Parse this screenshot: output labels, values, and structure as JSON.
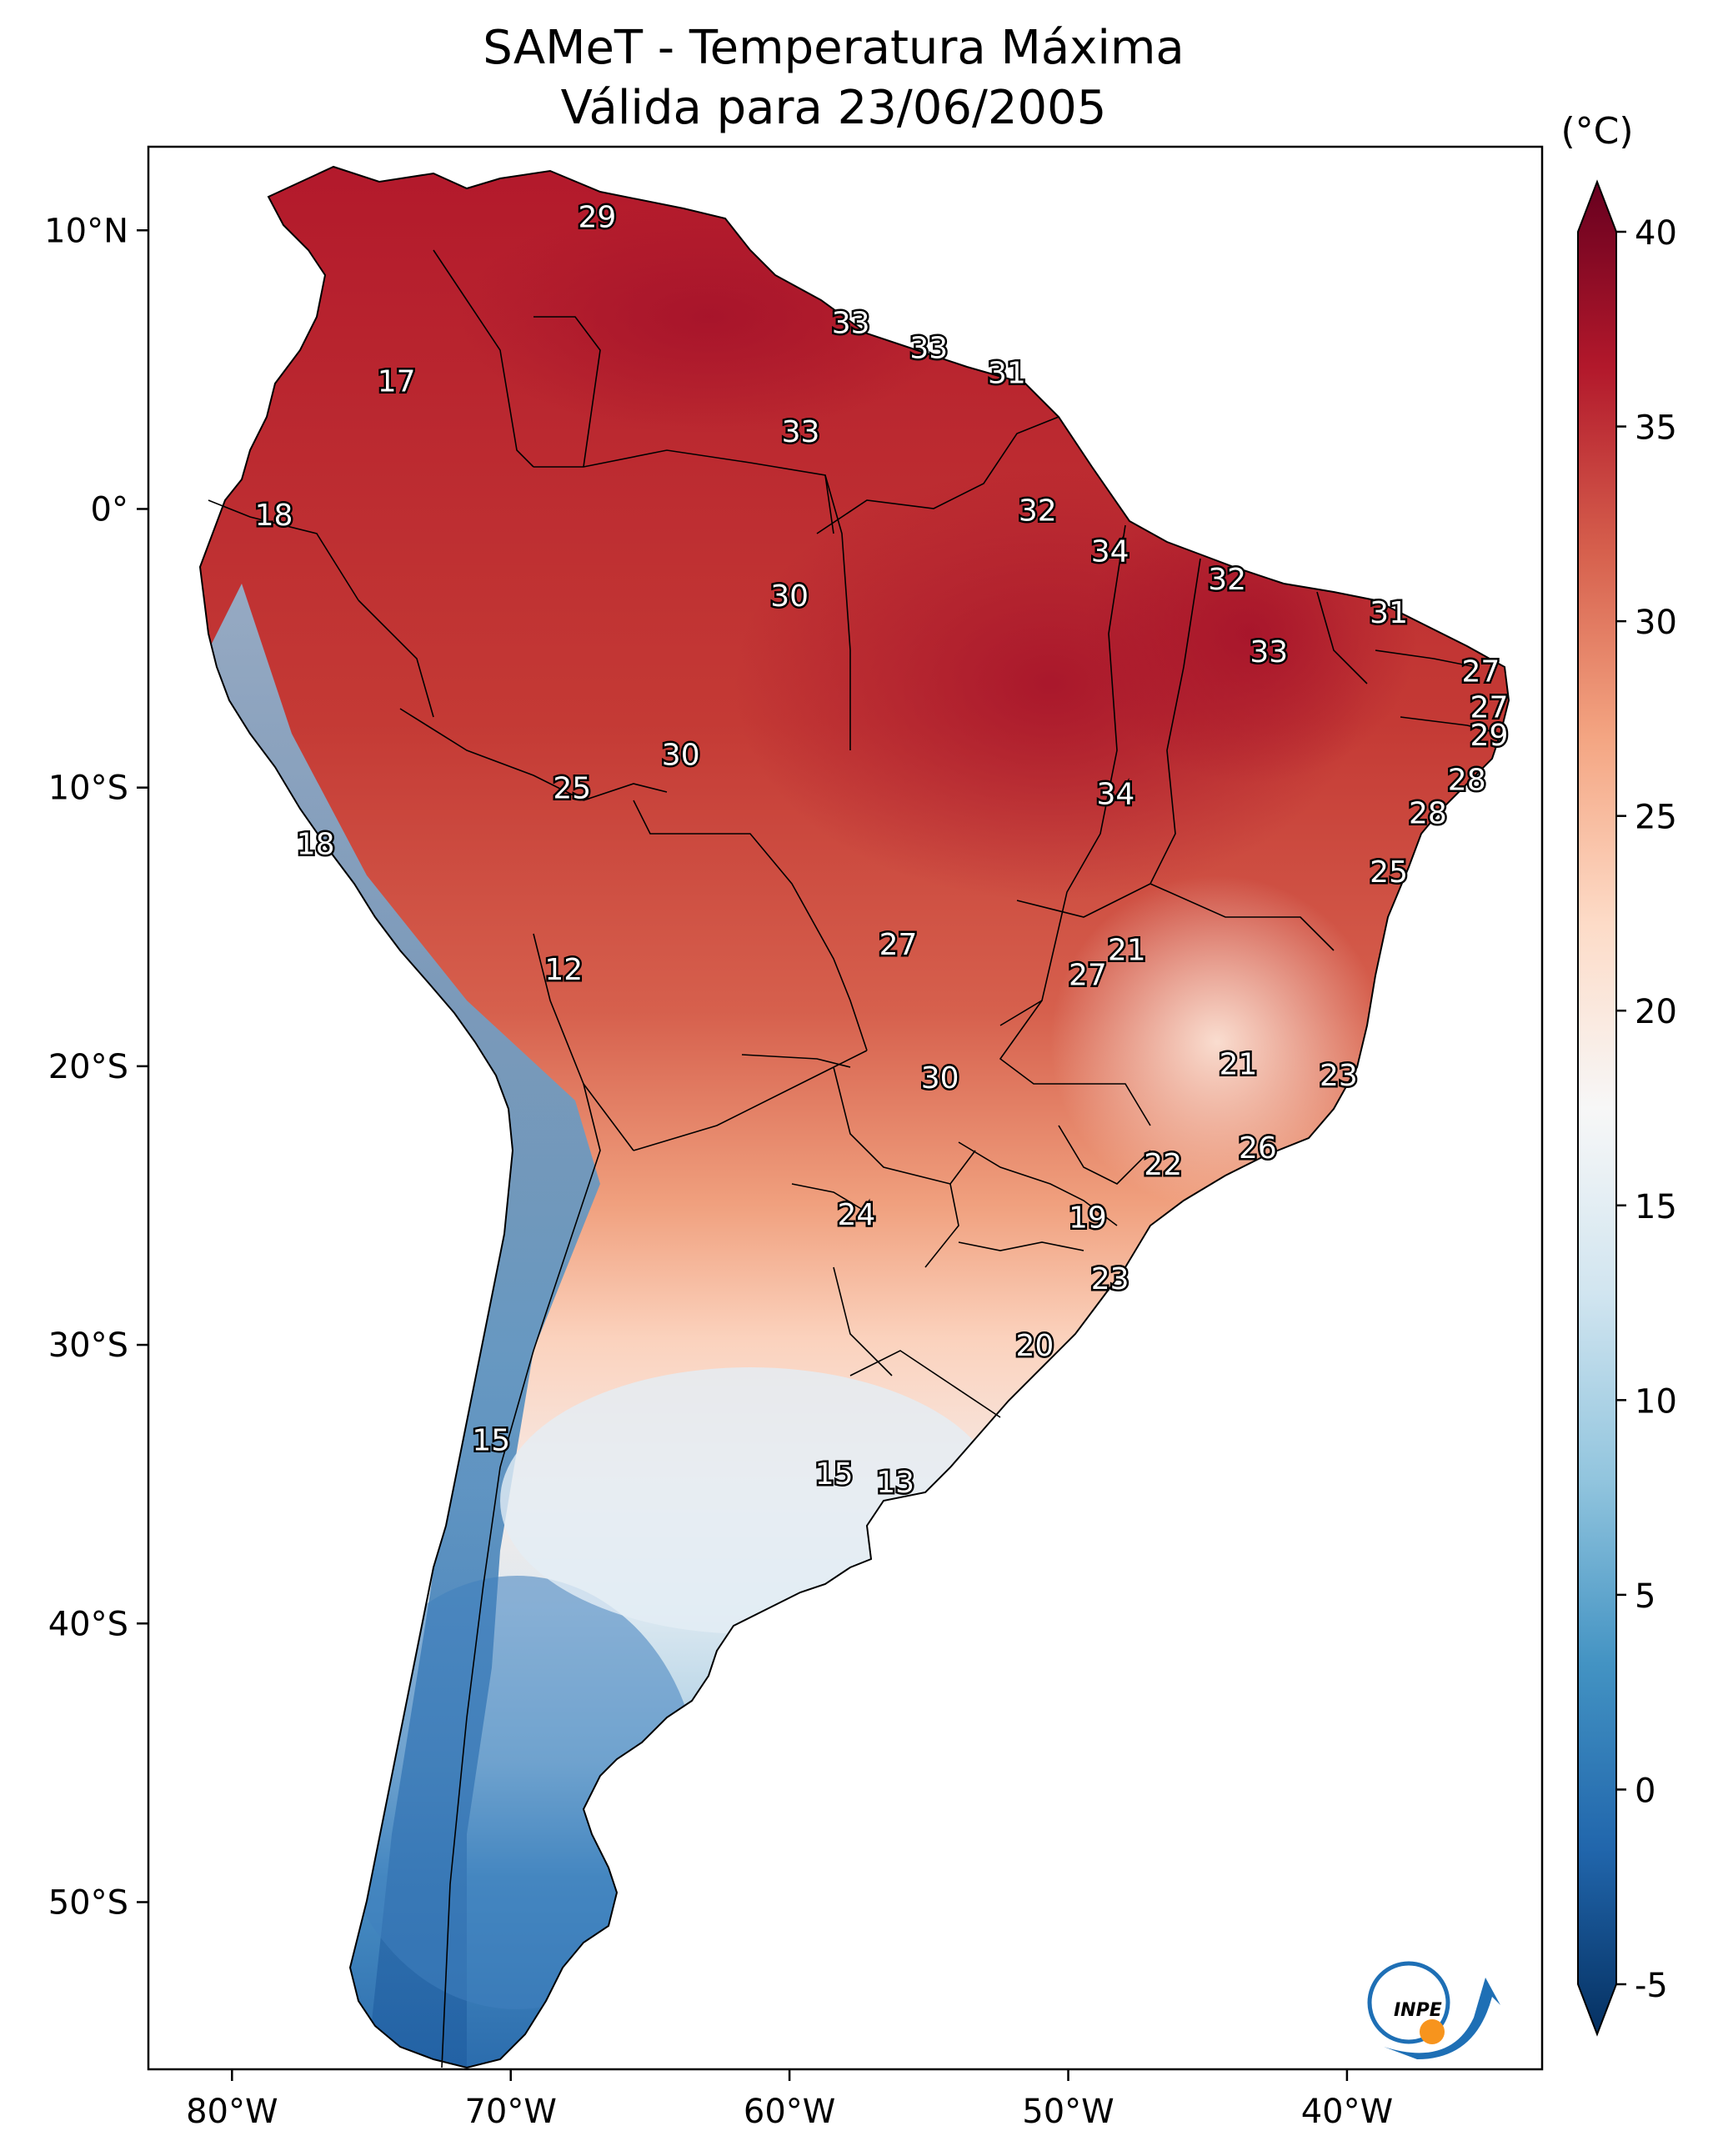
{
  "title_line1": "SAMeT - Temperatura Máxima",
  "title_line2": "Válida para 23/06/2005",
  "colorbar": {
    "unit_label": "(°C)",
    "ticks": [
      "40",
      "35",
      "30",
      "25",
      "20",
      "15",
      "10",
      "5",
      "0",
      "-5"
    ],
    "tick_values": [
      40,
      35,
      30,
      25,
      20,
      15,
      10,
      5,
      0,
      -5
    ],
    "range": [
      -5,
      40
    ],
    "colors": [
      "#053061",
      "#2166ac",
      "#4393c3",
      "#92c5de",
      "#d1e5f0",
      "#f7f7f7",
      "#fddbc7",
      "#f4a582",
      "#d6604d",
      "#b2182b",
      "#67001f"
    ]
  },
  "axes": {
    "lon_ticks": [
      "80°W",
      "70°W",
      "60°W",
      "50°W",
      "40°W"
    ],
    "lon_values": [
      -80,
      -70,
      -60,
      -50,
      -40
    ],
    "lat_ticks": [
      "10°N",
      "0°",
      "10°S",
      "20°S",
      "30°S",
      "40°S",
      "50°S"
    ],
    "lat_values": [
      10,
      0,
      -10,
      -20,
      -30,
      -40,
      -50
    ],
    "lon_range": [
      -83,
      -33
    ],
    "lat_range": [
      -56,
      13
    ]
  },
  "stations": [
    {
      "value": "29",
      "lon": -66.9,
      "lat": 10.5
    },
    {
      "value": "17",
      "lon": -74.1,
      "lat": 4.6
    },
    {
      "value": "33",
      "lon": -57.8,
      "lat": 6.7
    },
    {
      "value": "33",
      "lon": -55.0,
      "lat": 5.8
    },
    {
      "value": "31",
      "lon": -52.2,
      "lat": 4.9
    },
    {
      "value": "33",
      "lon": -59.6,
      "lat": 2.8
    },
    {
      "value": "18",
      "lon": -78.5,
      "lat": -0.2
    },
    {
      "value": "32",
      "lon": -51.1,
      "lat": -0.03
    },
    {
      "value": "34",
      "lon": -48.5,
      "lat": -1.5
    },
    {
      "value": "32",
      "lon": -44.3,
      "lat": -2.5
    },
    {
      "value": "30",
      "lon": -60.0,
      "lat": -3.1
    },
    {
      "value": "31",
      "lon": -38.5,
      "lat": -3.7
    },
    {
      "value": "33",
      "lon": -42.8,
      "lat": -5.1
    },
    {
      "value": "27",
      "lon": -35.2,
      "lat": -5.8
    },
    {
      "value": "27",
      "lon": -34.9,
      "lat": -7.1
    },
    {
      "value": "29",
      "lon": -34.9,
      "lat": -8.1
    },
    {
      "value": "30",
      "lon": -63.9,
      "lat": -8.8
    },
    {
      "value": "25",
      "lon": -67.8,
      "lat": -10.0
    },
    {
      "value": "34",
      "lon": -48.3,
      "lat": -10.2
    },
    {
      "value": "28",
      "lon": -35.7,
      "lat": -9.7
    },
    {
      "value": "18",
      "lon": -77.0,
      "lat": -12.0
    },
    {
      "value": "28",
      "lon": -37.1,
      "lat": -10.9
    },
    {
      "value": "25",
      "lon": -38.5,
      "lat": -13.0
    },
    {
      "value": "12",
      "lon": -68.1,
      "lat": -16.5
    },
    {
      "value": "27",
      "lon": -56.1,
      "lat": -15.6
    },
    {
      "value": "21",
      "lon": -47.9,
      "lat": -15.8
    },
    {
      "value": "27",
      "lon": -49.3,
      "lat": -16.7
    },
    {
      "value": "21",
      "lon": -43.9,
      "lat": -19.9
    },
    {
      "value": "23",
      "lon": -40.3,
      "lat": -20.3
    },
    {
      "value": "30",
      "lon": -54.6,
      "lat": -20.4
    },
    {
      "value": "22",
      "lon": -46.6,
      "lat": -23.5
    },
    {
      "value": "26",
      "lon": -43.2,
      "lat": -22.9
    },
    {
      "value": "24",
      "lon": -57.6,
      "lat": -25.3
    },
    {
      "value": "19",
      "lon": -49.3,
      "lat": -25.4
    },
    {
      "value": "23",
      "lon": -48.5,
      "lat": -27.6
    },
    {
      "value": "20",
      "lon": -51.2,
      "lat": -30.0
    },
    {
      "value": "15",
      "lon": -70.7,
      "lat": -33.4
    },
    {
      "value": "15",
      "lon": -58.4,
      "lat": -34.6
    },
    {
      "value": "13",
      "lon": -56.2,
      "lat": -34.9
    }
  ],
  "logo": {
    "text": "INPE"
  }
}
